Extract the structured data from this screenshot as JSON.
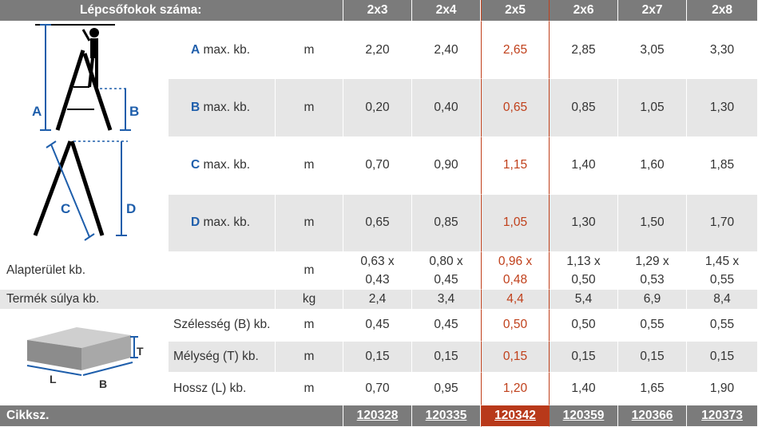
{
  "header": {
    "title": "Lépcsőfokok száma:",
    "columns": [
      "2x3",
      "2x4",
      "2x5",
      "2x6",
      "2x7",
      "2x8"
    ],
    "highlight_index": 2
  },
  "rows": {
    "a": {
      "letter": "A",
      "label": " max. kb.",
      "unit": "m",
      "values": [
        "2,20",
        "2,40",
        "2,65",
        "2,85",
        "3,05",
        "3,30"
      ]
    },
    "b": {
      "letter": "B",
      "label": " max. kb.",
      "unit": "m",
      "values": [
        "0,20",
        "0,40",
        "0,65",
        "0,85",
        "1,05",
        "1,30"
      ]
    },
    "c": {
      "letter": "C",
      "label": " max. kb.",
      "unit": "m",
      "values": [
        "0,70",
        "0,90",
        "1,15",
        "1,40",
        "1,60",
        "1,85"
      ]
    },
    "d": {
      "letter": "D",
      "label": " max. kb.",
      "unit": "m",
      "values": [
        "0,65",
        "0,85",
        "1,05",
        "1,30",
        "1,50",
        "1,70"
      ]
    },
    "alap": {
      "label": "Alapterület kb.",
      "unit": "m",
      "values": [
        [
          "0,63 x",
          "0,43"
        ],
        [
          "0,80 x",
          "0,45"
        ],
        [
          "0,96 x",
          "0,48"
        ],
        [
          "1,13 x",
          "0,50"
        ],
        [
          "1,29 x",
          "0,53"
        ],
        [
          "1,45 x",
          "0,55"
        ]
      ]
    },
    "suly": {
      "label": "Termék súlya kb.",
      "unit": "kg",
      "values": [
        "2,4",
        "3,4",
        "4,4",
        "5,4",
        "6,9",
        "8,4"
      ]
    },
    "szel": {
      "label": "Szélesség (B) kb.",
      "unit": "m",
      "values": [
        "0,45",
        "0,45",
        "0,50",
        "0,50",
        "0,55",
        "0,55"
      ]
    },
    "mely": {
      "label": "Mélység (T) kb.",
      "unit": "m",
      "values": [
        "0,15",
        "0,15",
        "0,15",
        "0,15",
        "0,15",
        "0,15"
      ]
    },
    "hossz": {
      "label": "Hossz (L) kb.",
      "unit": "m",
      "values": [
        "0,70",
        "0,95",
        "1,20",
        "1,40",
        "1,65",
        "1,90"
      ]
    }
  },
  "footer": {
    "label": "Cikksz.",
    "codes": [
      "120328",
      "120335",
      "120342",
      "120359",
      "120366",
      "120373"
    ]
  },
  "diagram": {
    "ladder_labels": [
      "A",
      "B",
      "C",
      "D"
    ],
    "box_labels": [
      "T",
      "L",
      "B"
    ]
  },
  "colors": {
    "header_bg": "#7b7b7b",
    "row_grey": "#e6e6e6",
    "highlight": "#c0401b",
    "letter_blue": "#1e5eab"
  }
}
